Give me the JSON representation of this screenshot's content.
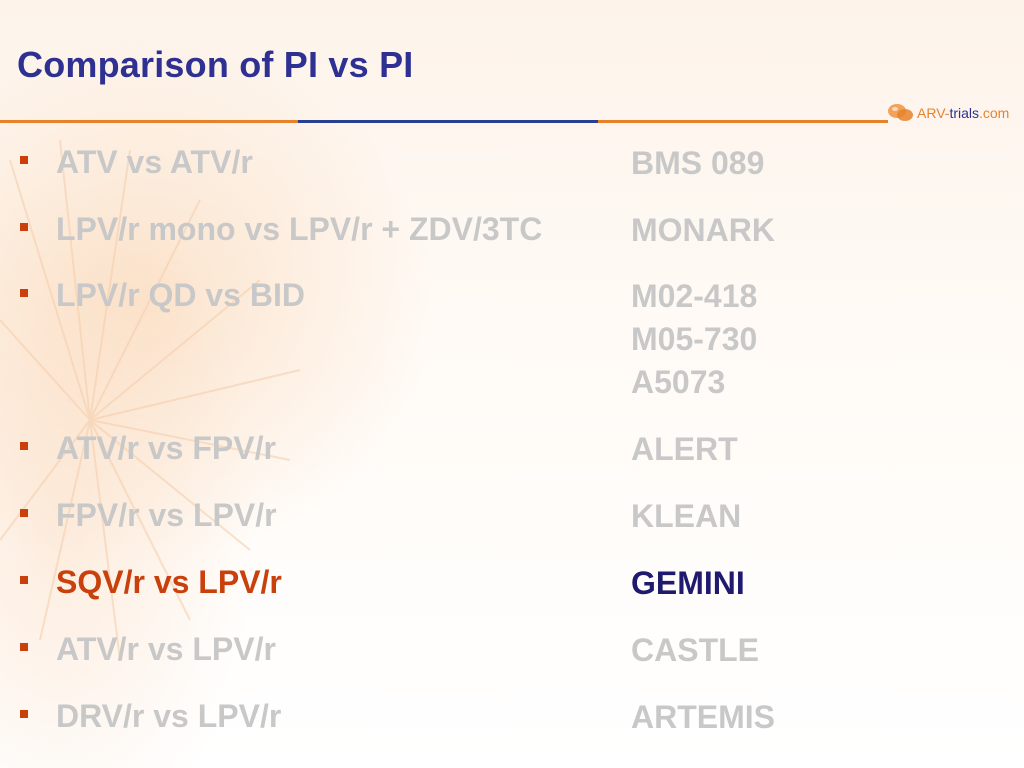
{
  "slide": {
    "title": "Comparison of PI vs PI",
    "logo": {
      "part1": "ARV-",
      "part2": "trials",
      "part3": ".com"
    }
  },
  "colors": {
    "title": "#2e3192",
    "bullet": "#c9400c",
    "muted_text": "#c8c8c8",
    "highlight_label": "#c9400c",
    "highlight_trial": "#1f1a6e"
  },
  "rows": [
    {
      "label": "ATV vs ATV/r",
      "trials": [
        "BMS 089"
      ],
      "highlighted": false
    },
    {
      "label": "LPV/r mono vs LPV/r + ZDV/3TC",
      "trials": [
        "MONARK"
      ],
      "highlighted": false
    },
    {
      "label": "LPV/r QD vs BID",
      "trials": [
        "M02-418",
        "M05-730",
        "A5073"
      ],
      "highlighted": false
    },
    {
      "label": "ATV/r vs FPV/r",
      "trials": [
        "ALERT"
      ],
      "highlighted": false
    },
    {
      "label": "FPV/r vs LPV/r",
      "trials": [
        "KLEAN"
      ],
      "highlighted": false
    },
    {
      "label": "SQV/r vs LPV/r",
      "trials": [
        "GEMINI"
      ],
      "highlighted": true
    },
    {
      "label": "ATV/r vs LPV/r",
      "trials": [
        "CASTLE"
      ],
      "highlighted": false
    },
    {
      "label": "DRV/r vs LPV/r",
      "trials": [
        "ARTEMIS"
      ],
      "highlighted": false
    }
  ]
}
